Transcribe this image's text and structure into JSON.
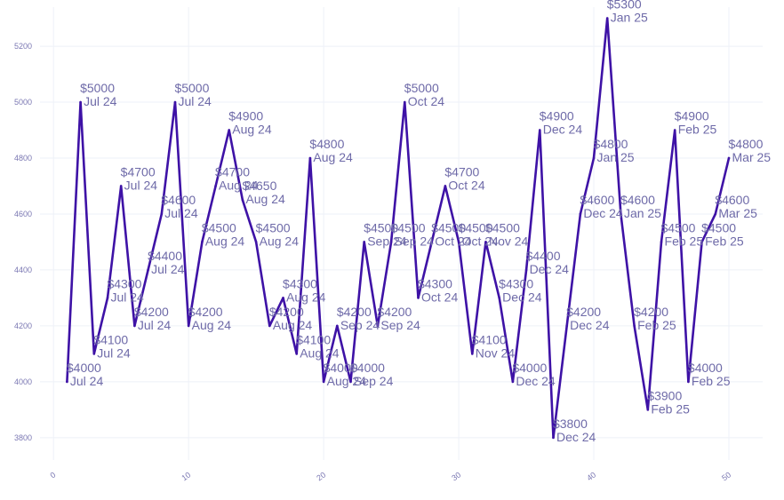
{
  "colors": {
    "line": "#3e12a6",
    "label": "#6e6aa8",
    "tick": "#7b78b3",
    "grid": "#eef1f8"
  },
  "chart_data": {
    "type": "line",
    "title": "",
    "xlabel": "",
    "ylabel": "",
    "xlim": [
      -1,
      52.5
    ],
    "ylim": [
      3720,
      5340
    ],
    "x_ticks": [
      0,
      10,
      20,
      30,
      40,
      50
    ],
    "y_ticks": [
      3800,
      4000,
      4200,
      4400,
      4600,
      4800,
      5000,
      5200
    ],
    "grid": true,
    "x": [
      1,
      2,
      3,
      4,
      5,
      6,
      7,
      8,
      9,
      10,
      11,
      12,
      13,
      14,
      15,
      16,
      17,
      18,
      19,
      20,
      21,
      22,
      23,
      24,
      25,
      26,
      27,
      28,
      29,
      30,
      31,
      32,
      33,
      34,
      35,
      36,
      37,
      38,
      39,
      40,
      41,
      42,
      43,
      44,
      45,
      46,
      47,
      48,
      49,
      50
    ],
    "values": [
      4000,
      5000,
      4100,
      4300,
      4700,
      4200,
      4400,
      4600,
      5000,
      4200,
      4500,
      4700,
      4900,
      4650,
      4500,
      4200,
      4300,
      4100,
      4800,
      4000,
      4200,
      4000,
      4500,
      4200,
      4500,
      5000,
      4300,
      4500,
      4700,
      4500,
      4100,
      4500,
      4300,
      4000,
      4400,
      4900,
      3800,
      4200,
      4600,
      4800,
      5300,
      4600,
      4200,
      3900,
      4500,
      4900,
      4000,
      4500,
      4600,
      4800
    ],
    "value_labels": [
      "$4000",
      "$5000",
      "$4100",
      "$4300",
      "$4700",
      "$4200",
      "$4400",
      "$4600",
      "$5000",
      "$4200",
      "$4500",
      "$4700",
      "$4900",
      "$4650",
      "$4500",
      "$4200",
      "$4300",
      "$4100",
      "$4800",
      "$4000",
      "$4200",
      "$4000",
      "$4500",
      "$4200",
      "$4500",
      "$5000",
      "$4300",
      "$4500",
      "$4700",
      "$4500",
      "$4100",
      "$4500",
      "$4300",
      "$4000",
      "$4400",
      "$4900",
      "$3800",
      "$4200",
      "$4600",
      "$4800",
      "$5300",
      "$4600",
      "$4200",
      "$3900",
      "$4500",
      "$4900",
      "$4000",
      "$4500",
      "$4600",
      "$4800"
    ],
    "months": [
      "Jul 24",
      "Jul 24",
      "Jul 24",
      "Jul 24",
      "Jul 24",
      "Jul 24",
      "Jul 24",
      "Jul 24",
      "Jul 24",
      "Aug 24",
      "Aug 24",
      "Aug 24",
      "Aug 24",
      "Aug 24",
      "Aug 24",
      "Aug 24",
      "Aug 24",
      "Aug 24",
      "Aug 24",
      "Aug 24",
      "Sep 24",
      "Sep 24",
      "Sep 24",
      "Sep 24",
      "Sep 24",
      "Oct 24",
      "Oct 24",
      "Oct 24",
      "Oct 24",
      "Oct 24",
      "Nov 24",
      "Nov 24",
      "Dec 24",
      "Dec 24",
      "Dec 24",
      "Dec 24",
      "Dec 24",
      "Dec 24",
      "Dec 24",
      "Jan 25",
      "Jan 25",
      "Jan 25",
      "Feb 25",
      "Feb 25",
      "Feb 25",
      "Feb 25",
      "Feb 25",
      "Feb 25",
      "Mar 25",
      "Mar 25"
    ]
  }
}
